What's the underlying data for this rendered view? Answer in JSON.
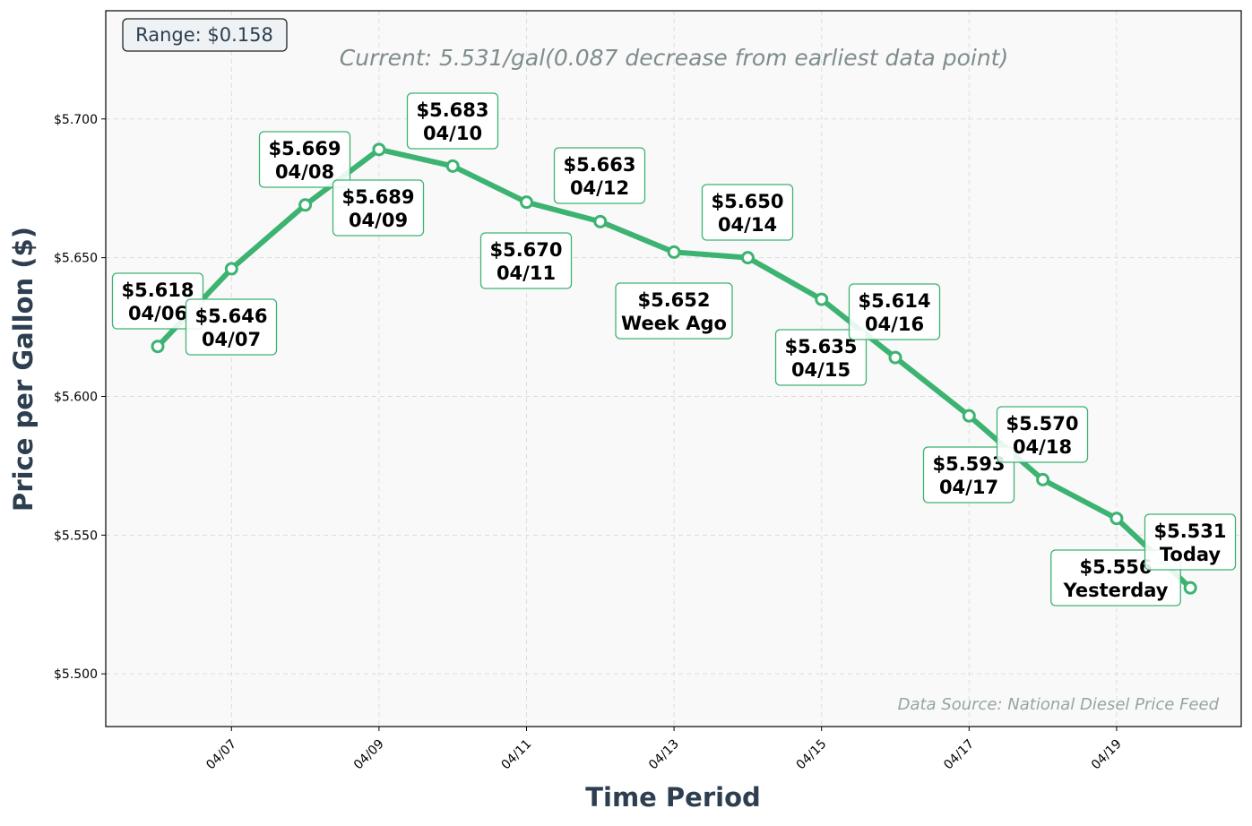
{
  "chart_data": {
    "type": "line",
    "title": "",
    "xlabel": "Time Period",
    "ylabel": "Price per Gallon ($)",
    "x": [
      "04/06",
      "04/07",
      "04/08",
      "04/09",
      "04/10",
      "04/11",
      "04/12",
      "04/13",
      "04/14",
      "04/15",
      "04/16",
      "04/17",
      "04/18",
      "04/19",
      "04/20"
    ],
    "values": [
      5.618,
      5.646,
      5.669,
      5.689,
      5.683,
      5.67,
      5.663,
      5.652,
      5.65,
      5.635,
      5.614,
      5.593,
      5.57,
      5.556,
      5.531
    ],
    "point_labels": [
      [
        "$5.618",
        "04/06"
      ],
      [
        "$5.646",
        "04/07"
      ],
      [
        "$5.669",
        "04/08"
      ],
      [
        "$5.689",
        "04/09"
      ],
      [
        "$5.683",
        "04/10"
      ],
      [
        "$5.670",
        "04/11"
      ],
      [
        "$5.663",
        "04/12"
      ],
      [
        "$5.652",
        "Week Ago"
      ],
      [
        "$5.650",
        "04/14"
      ],
      [
        "$5.635",
        "04/15"
      ],
      [
        "$5.614",
        "04/16"
      ],
      [
        "$5.593",
        "04/17"
      ],
      [
        "$5.570",
        "04/18"
      ],
      [
        "$5.556",
        "Yesterday"
      ],
      [
        "$5.531",
        "Today"
      ]
    ],
    "xticks": [
      "04/07",
      "04/09",
      "04/11",
      "04/13",
      "04/15",
      "04/17",
      "04/19"
    ],
    "yticks": [
      5.5,
      5.55,
      5.6,
      5.65,
      5.7
    ],
    "ytick_labels": [
      "$5.500",
      "$5.550",
      "$5.600",
      "$5.650",
      "$5.700"
    ],
    "ylim": [
      5.481,
      5.739
    ],
    "xlim": [
      "04/06 -0.7 day",
      "04/20 +0.7 day"
    ],
    "grid": true,
    "line_color": "#3cb371",
    "annotations": {
      "range": "Range: $0.158",
      "current": "Current: 5.531/gal(0.087 decrease from earliest data point)",
      "source": "Data Source: National Diesel Price Feed"
    }
  }
}
